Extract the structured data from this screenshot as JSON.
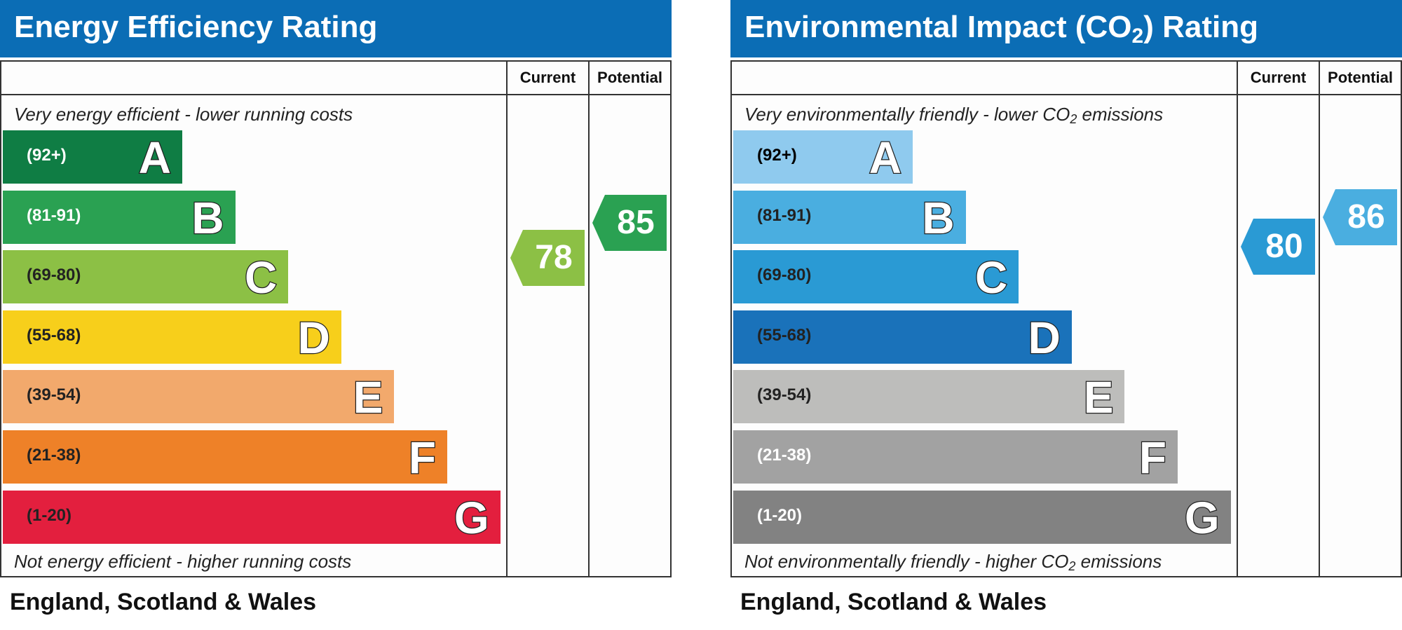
{
  "chart_data": [
    {
      "type": "bar",
      "title": "Energy Efficiency Rating",
      "columns": [
        "Current",
        "Potential"
      ],
      "top_caption": "Very energy efficient - lower running costs",
      "bottom_caption": "Not energy efficient - higher running costs",
      "region": "England, Scotland & Wales",
      "bands": [
        {
          "letter": "A",
          "range": "(92+)",
          "min": 92,
          "max": 100,
          "color": "#0f7d44",
          "text_color": "#ffffff"
        },
        {
          "letter": "B",
          "range": "(81-91)",
          "min": 81,
          "max": 91,
          "color": "#2aa152",
          "text_color": "#ffffff"
        },
        {
          "letter": "C",
          "range": "(69-80)",
          "min": 69,
          "max": 80,
          "color": "#8cc045",
          "text_color": "#222222"
        },
        {
          "letter": "D",
          "range": "(55-68)",
          "min": 55,
          "max": 68,
          "color": "#f7cf1b",
          "text_color": "#222222"
        },
        {
          "letter": "E",
          "range": "(39-54)",
          "min": 39,
          "max": 54,
          "color": "#f2a96c",
          "text_color": "#222222"
        },
        {
          "letter": "F",
          "range": "(21-38)",
          "min": 21,
          "max": 38,
          "color": "#ee8128",
          "text_color": "#222222"
        },
        {
          "letter": "G",
          "range": "(1-20)",
          "min": 1,
          "max": 20,
          "color": "#e31f3e",
          "text_color": "#222222"
        }
      ],
      "current": {
        "value": 78,
        "color": "#8cc045"
      },
      "potential": {
        "value": 85,
        "color": "#2aa152"
      }
    },
    {
      "type": "bar",
      "title": "Environmental Impact (CO",
      "title_sub": "2",
      "title_end": ") Rating",
      "columns": [
        "Current",
        "Potential"
      ],
      "top_caption": "Very environmentally friendly - lower CO",
      "top_caption_sub": "2",
      "top_caption_end": " emissions",
      "bottom_caption": "Not environmentally friendly - higher CO",
      "bottom_caption_sub": "2",
      "bottom_caption_end": " emissions",
      "region": "England, Scotland & Wales",
      "bands": [
        {
          "letter": "A",
          "range": "(92+)",
          "min": 92,
          "max": 100,
          "color": "#8fcaee",
          "text_color": "#000000"
        },
        {
          "letter": "B",
          "range": "(81-91)",
          "min": 81,
          "max": 91,
          "color": "#4aaee0",
          "text_color": "#222222"
        },
        {
          "letter": "C",
          "range": "(69-80)",
          "min": 69,
          "max": 80,
          "color": "#2a9ad4",
          "text_color": "#222222"
        },
        {
          "letter": "D",
          "range": "(55-68)",
          "min": 55,
          "max": 68,
          "color": "#1a72ba",
          "text_color": "#222222"
        },
        {
          "letter": "E",
          "range": "(39-54)",
          "min": 39,
          "max": 54,
          "color": "#bdbdbb",
          "text_color": "#222222"
        },
        {
          "letter": "F",
          "range": "(21-38)",
          "min": 21,
          "max": 38,
          "color": "#a2a2a2",
          "text_color": "#ffffff"
        },
        {
          "letter": "G",
          "range": "(1-20)",
          "min": 1,
          "max": 20,
          "color": "#828282",
          "text_color": "#ffffff"
        }
      ],
      "current": {
        "value": 80,
        "color": "#2a9ad4"
      },
      "potential": {
        "value": 86,
        "color": "#4aaee0"
      }
    }
  ]
}
